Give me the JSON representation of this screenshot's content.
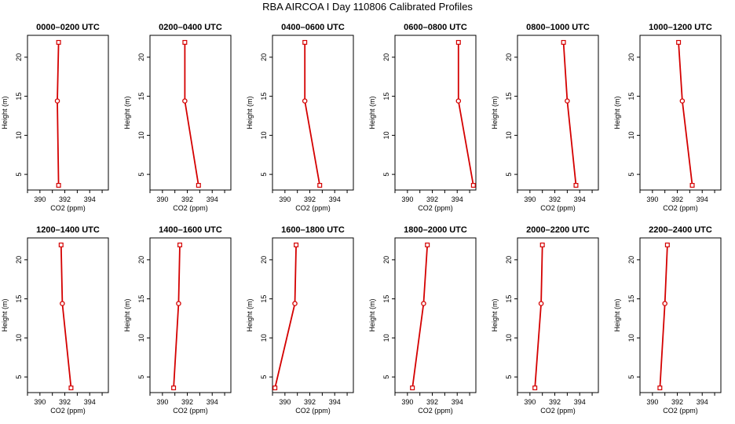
{
  "figure": {
    "title": "RBA AIRCOA I  Day 110806  Calibrated Profiles"
  },
  "style": {
    "line_color": "#d40000",
    "marker_color": "#d40000"
  },
  "chart_data": [
    {
      "type": "line",
      "title": "0000–0200 UTC",
      "xlabel": "CO2 (ppm)",
      "ylabel": "Height (m)",
      "xlim": [
        389,
        395.5
      ],
      "ylim": [
        3,
        22.8
      ],
      "xticks": [
        390,
        392,
        394
      ],
      "yticks": [
        5,
        10,
        15,
        20
      ],
      "series": [
        {
          "x": [
            391.5,
            391.4,
            391.5
          ],
          "y": [
            3.6,
            14.4,
            21.9
          ]
        }
      ]
    },
    {
      "type": "line",
      "title": "0200–0400 UTC",
      "xlabel": "CO2 (ppm)",
      "ylabel": "Height (m)",
      "xlim": [
        389,
        395.5
      ],
      "ylim": [
        3,
        22.8
      ],
      "xticks": [
        390,
        392,
        394
      ],
      "yticks": [
        5,
        10,
        15,
        20
      ],
      "series": [
        {
          "x": [
            392.9,
            391.8,
            391.8
          ],
          "y": [
            3.6,
            14.4,
            21.9
          ]
        }
      ]
    },
    {
      "type": "line",
      "title": "0400–0600 UTC",
      "xlabel": "CO2 (ppm)",
      "ylabel": "Height (m)",
      "xlim": [
        389,
        395.5
      ],
      "ylim": [
        3,
        22.8
      ],
      "xticks": [
        390,
        392,
        394
      ],
      "yticks": [
        5,
        10,
        15,
        20
      ],
      "series": [
        {
          "x": [
            392.8,
            391.6,
            391.6
          ],
          "y": [
            3.6,
            14.4,
            21.9
          ]
        }
      ]
    },
    {
      "type": "line",
      "title": "0600–0800 UTC",
      "xlabel": "CO2 (ppm)",
      "ylabel": "Height (m)",
      "xlim": [
        389,
        395.5
      ],
      "ylim": [
        3,
        22.8
      ],
      "xticks": [
        390,
        392,
        394
      ],
      "yticks": [
        5,
        10,
        15,
        20
      ],
      "series": [
        {
          "x": [
            395.3,
            394.1,
            394.1
          ],
          "y": [
            3.6,
            14.4,
            21.9
          ]
        }
      ]
    },
    {
      "type": "line",
      "title": "0800–1000 UTC",
      "xlabel": "CO2 (ppm)",
      "ylabel": "Height (m)",
      "xlim": [
        389,
        395.5
      ],
      "ylim": [
        3,
        22.8
      ],
      "xticks": [
        390,
        392,
        394
      ],
      "yticks": [
        5,
        10,
        15,
        20
      ],
      "series": [
        {
          "x": [
            393.7,
            393.0,
            392.7
          ],
          "y": [
            3.6,
            14.4,
            21.9
          ]
        }
      ]
    },
    {
      "type": "line",
      "title": "1000–1200 UTC",
      "xlabel": "CO2 (ppm)",
      "ylabel": "Height (m)",
      "xlim": [
        389,
        395.5
      ],
      "ylim": [
        3,
        22.8
      ],
      "xticks": [
        390,
        392,
        394
      ],
      "yticks": [
        5,
        10,
        15,
        20
      ],
      "series": [
        {
          "x": [
            393.2,
            392.4,
            392.1
          ],
          "y": [
            3.6,
            14.4,
            21.9
          ]
        }
      ]
    },
    {
      "type": "line",
      "title": "1200–1400 UTC",
      "xlabel": "CO2 (ppm)",
      "ylabel": "Height (m)",
      "xlim": [
        389,
        395.5
      ],
      "ylim": [
        3,
        22.8
      ],
      "xticks": [
        390,
        392,
        394
      ],
      "yticks": [
        5,
        10,
        15,
        20
      ],
      "series": [
        {
          "x": [
            392.5,
            391.8,
            391.7
          ],
          "y": [
            3.6,
            14.4,
            21.9
          ]
        }
      ]
    },
    {
      "type": "line",
      "title": "1400–1600 UTC",
      "xlabel": "CO2 (ppm)",
      "ylabel": "Height (m)",
      "xlim": [
        389,
        395.5
      ],
      "ylim": [
        3,
        22.8
      ],
      "xticks": [
        390,
        392,
        394
      ],
      "yticks": [
        5,
        10,
        15,
        20
      ],
      "series": [
        {
          "x": [
            390.9,
            391.3,
            391.4
          ],
          "y": [
            3.6,
            14.4,
            21.9
          ]
        }
      ]
    },
    {
      "type": "line",
      "title": "1600–1800 UTC",
      "xlabel": "CO2 (ppm)",
      "ylabel": "Height (m)",
      "xlim": [
        389,
        395.5
      ],
      "ylim": [
        3,
        22.8
      ],
      "xticks": [
        390,
        392,
        394
      ],
      "yticks": [
        5,
        10,
        15,
        20
      ],
      "series": [
        {
          "x": [
            389.2,
            390.8,
            390.9
          ],
          "y": [
            3.6,
            14.4,
            21.9
          ]
        }
      ]
    },
    {
      "type": "line",
      "title": "1800–2000 UTC",
      "xlabel": "CO2 (ppm)",
      "ylabel": "Height (m)",
      "xlim": [
        389,
        395.5
      ],
      "ylim": [
        3,
        22.8
      ],
      "xticks": [
        390,
        392,
        394
      ],
      "yticks": [
        5,
        10,
        15,
        20
      ],
      "series": [
        {
          "x": [
            390.4,
            391.3,
            391.6
          ],
          "y": [
            3.6,
            14.4,
            21.9
          ]
        }
      ]
    },
    {
      "type": "line",
      "title": "2000–2200 UTC",
      "xlabel": "CO2 (ppm)",
      "ylabel": "Height (m)",
      "xlim": [
        389,
        395.5
      ],
      "ylim": [
        3,
        22.8
      ],
      "xticks": [
        390,
        392,
        394
      ],
      "yticks": [
        5,
        10,
        15,
        20
      ],
      "series": [
        {
          "x": [
            390.4,
            390.9,
            391.0
          ],
          "y": [
            3.6,
            14.4,
            21.9
          ]
        }
      ]
    },
    {
      "type": "line",
      "title": "2200–2400 UTC",
      "xlabel": "CO2 (ppm)",
      "ylabel": "Height (m)",
      "xlim": [
        389,
        395.5
      ],
      "ylim": [
        3,
        22.8
      ],
      "xticks": [
        390,
        392,
        394
      ],
      "yticks": [
        5,
        10,
        15,
        20
      ],
      "series": [
        {
          "x": [
            390.6,
            391.0,
            391.2
          ],
          "y": [
            3.6,
            14.4,
            21.9
          ]
        }
      ]
    }
  ]
}
